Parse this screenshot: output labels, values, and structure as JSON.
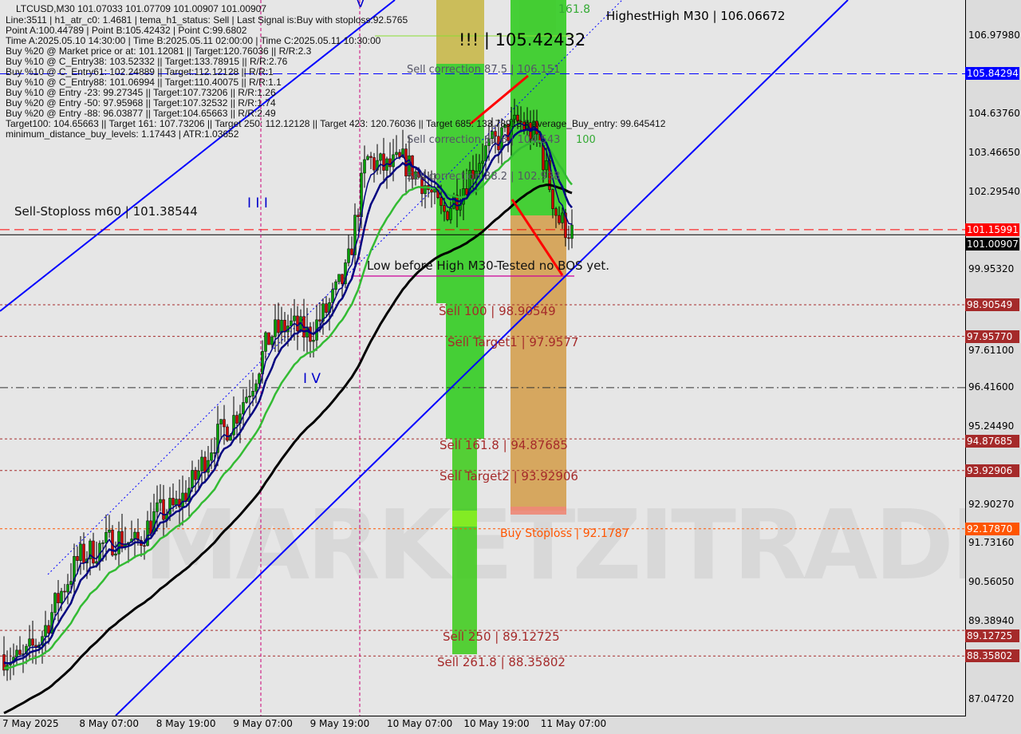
{
  "header": {
    "title": "LTCUSD,M30  101.07033 101.07709 101.00907 101.00907",
    "lines": [
      "Line:3511 | h1_atr_c0: 1.4681 | tema_h1_status: Sell | Last Signal is:Buy with stoploss:92.5765",
      "Point A:100.44789 | Point B:105.42432 | Point C:99.6802",
      "Time A:2025.05.10 14:30:00 | Time B:2025.05.11 02:00:00 | Time C:2025.05.11 10:30:00",
      "Buy %20 @ Market price or at: 101.12081 || Target:120.76036 || R/R:2.3",
      "Buy %10 @ C_Entry38: 103.52332 || Target:133.78915 || R/R:2.76",
      "Buy %10 @ C_Entry61: 102.24889 || Target:112.12128 || R/R:1",
      "Buy %10 @ C_Entry88: 101.06994 || Target:110.40075 || R/R:1.1",
      "Buy %10 @ Entry -23: 99.27345 || Target:107.73206 || R/R:1.26",
      "Buy %20 @ Entry -50: 97.95968 || Target:107.32532 || R/R:1.74",
      "Buy %20 @ Entry -88: 96.03877 || Target:104.65663 || R/R:2.49",
      "Target100: 104.65663 || Target 161: 107.73206 || Target 250: 112.12128 || Target 423: 120.76036 || Target 685: 133.78915 || average_Buy_entry: 99.645412",
      "minimum_distance_buy_levels: 1.17443 | ATR:1.03652"
    ]
  },
  "annotations": {
    "highest_high": "HighestHigh   M30 | 106.06672",
    "high_value": "!!! | 105.42432",
    "fib_161": "161.8",
    "sell_corr_875": "Sell correction 87.5 | 106.151",
    "sell_corr_618": "Sell correction 61.8 | 104.543",
    "sell_corr_382": "Sell correction 38.2 | 102.938",
    "fib_100": "100",
    "sell_stoploss": "Sell-Stoploss m60 | 101.38544",
    "low_before_high": "Low before High  M30-Tested no BOS yet.",
    "sell_100": "Sell 100 | 98.90549",
    "sell_target1": "Sell Target1 | 97.9577",
    "sell_1618": "Sell 161.8 | 94.87685",
    "sell_target2": "Sell Target2 | 93.92906",
    "buy_stoploss": "Buy Stoploss | 92.1787",
    "sell_250": "Sell  250 | 89.12725",
    "sell_2618": "Sell  261.8 | 88.35802",
    "wave_iii": "I I I",
    "wave_iv": "I V",
    "wave_v": "V",
    "watermark": "MARKETZITRADE"
  },
  "colors": {
    "bull": "#00a000",
    "bear": "#d00000",
    "channel": "#0000ff",
    "ma_slow": "#000000",
    "ma_mid": "#33bb33",
    "ma_fast": "#000080",
    "level": "#a52a2a",
    "zone_green": "#33cc22",
    "zone_orange": "#d4a050"
  },
  "chart_data": {
    "type": "candlestick",
    "symbol": "LTCUSD",
    "timeframe": "M30",
    "x": [
      "7 May 19:00",
      "7 May 22:00",
      "8 May 01:00",
      "8 May 04:00",
      "8 May 07:00",
      "8 May 10:00",
      "8 May 13:00",
      "8 May 16:00",
      "8 May 19:00",
      "8 May 22:00",
      "9 May 01:00",
      "9 May 04:00",
      "9 May 07:00",
      "9 May 10:00",
      "9 May 13:00",
      "9 May 16:00",
      "9 May 19:00",
      "9 May 22:00",
      "10 May 01:00",
      "10 May 04:00",
      "10 May 07:00",
      "10 May 10:00",
      "10 May 13:00",
      "10 May 16:00",
      "10 May 19:00",
      "10 May 22:00",
      "11 May 01:00",
      "11 May 04:00",
      "11 May 07:00",
      "11 May 10:00",
      "11 May 12:00"
    ],
    "close": [
      88.4,
      88.2,
      88.9,
      90.2,
      91.3,
      91.6,
      91.9,
      91.7,
      92.6,
      92.8,
      93.6,
      94.8,
      95.4,
      96.5,
      98.0,
      98.3,
      98.0,
      98.8,
      99.9,
      103.3,
      103.0,
      103.2,
      102.6,
      101.6,
      102.4,
      103.4,
      103.9,
      104.4,
      103.9,
      101.5,
      101.0
    ],
    "ylim": [
      86.6,
      108.0
    ],
    "y_ticks": [
      "106.97980",
      "104.63760",
      "103.46650",
      "102.29540",
      "99.95320",
      "97.61100",
      "96.41600",
      "95.24490",
      "92.90270",
      "91.73160",
      "90.56050",
      "89.38940",
      "87.04720"
    ],
    "x_ticks": [
      "7 May 2025",
      "8 May 07:00",
      "8 May 19:00",
      "9 May 07:00",
      "9 May 19:00",
      "10 May 07:00",
      "10 May 19:00",
      "11 May 07:00"
    ],
    "levels": [
      {
        "price": 105.84294,
        "label": "105.84294",
        "color": "#0000ff",
        "style": "dashed"
      },
      {
        "price": 101.15991,
        "label": "101.15991",
        "color": "#ff0000",
        "style": "dashed"
      },
      {
        "price": 101.00907,
        "label": "101.00907",
        "color": "#000000",
        "style": "solid"
      },
      {
        "price": 98.90549,
        "label": "98.90549",
        "color": "#a52a2a",
        "style": "dotted"
      },
      {
        "price": 97.9577,
        "label": "97.95770",
        "color": "#a52a2a",
        "style": "dotted"
      },
      {
        "price": 96.416,
        "label": "",
        "color": "#333333",
        "style": "dashdot"
      },
      {
        "price": 94.87685,
        "label": "94.87685",
        "color": "#a52a2a",
        "style": "dotted"
      },
      {
        "price": 93.92906,
        "label": "93.92906",
        "color": "#a52a2a",
        "style": "dotted"
      },
      {
        "price": 92.1787,
        "label": "92.17870",
        "color": "#ff5500",
        "style": "dotted"
      },
      {
        "price": 89.12725,
        "label": "89.12725",
        "color": "#a52a2a",
        "style": "dotted"
      },
      {
        "price": 88.35802,
        "label": "88.35802",
        "color": "#a52a2a",
        "style": "dotted"
      }
    ],
    "grid": false
  }
}
